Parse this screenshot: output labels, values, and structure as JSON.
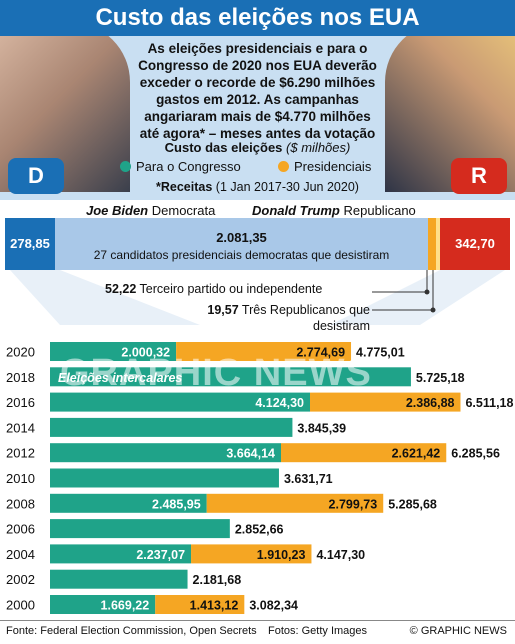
{
  "title": "Custo das eleições nos EUA",
  "intro": "As eleições presidenciais e para o Congresso de 2020 nos EUA deverão exceder o recorde de $6.290 milhões gastos em 2012. As campanhas angariaram mais de $4.770 milhões até agora* – meses antes da votação",
  "costs_title": "Custo das eleições",
  "costs_unit": "($ milhões)",
  "legend": {
    "congress": "Para o Congresso",
    "presidential": "Presidenciais"
  },
  "receipts_label": "*Receitas",
  "receipts_period": "(1 Jan 2017-30 Jun 2020)",
  "candidates": {
    "biden_name": "Joe Biden",
    "biden_party": "Democrata",
    "trump_name": "Donald Trump",
    "trump_party": "Republicano"
  },
  "contributions": {
    "biden": "278,85",
    "trump": "342,70",
    "dems_value": "2.081,35",
    "dems_label": "27  candidatos presidenciais democratas que desistiram",
    "third_value": "52,22",
    "third_label": "Terceiro partido ou independente",
    "rep_value": "19,57",
    "rep_label": "Três Republicanos que desistiram"
  },
  "party_logos": {
    "dem": "D",
    "rep": "R"
  },
  "colors": {
    "congress": "#1fa389",
    "presidential": "#f5a623",
    "dem": "#1a6fb5",
    "rep": "#d52b1e",
    "dem_light": "#a9c8e8",
    "header_bg": "#c9dff2"
  },
  "watermark": "GRAPHIC NEWS",
  "chart_data": {
    "type": "bar",
    "orientation": "horizontal",
    "stacked": true,
    "categories": [
      "2020",
      "2018",
      "2016",
      "2014",
      "2012",
      "2010",
      "2008",
      "2006",
      "2004",
      "2002",
      "2000"
    ],
    "series": [
      {
        "name": "Para o Congresso",
        "values": [
          2000.32,
          5725.18,
          4124.3,
          3845.39,
          3664.14,
          3631.71,
          2485.95,
          2852.66,
          2237.07,
          2181.68,
          1669.22
        ],
        "labels": [
          "2.000,32",
          "",
          "4.124,30",
          "",
          "3.664,14",
          "",
          "2.485,95",
          "",
          "2.237,07",
          "",
          "1.669,22"
        ]
      },
      {
        "name": "Presidenciais",
        "values": [
          2774.69,
          0,
          2386.88,
          0,
          2621.42,
          0,
          2799.73,
          0,
          1910.23,
          0,
          1413.12
        ],
        "labels": [
          "2.774,69",
          "",
          "2.386,88",
          "",
          "2.621,42",
          "",
          "2.799,73",
          "",
          "1.910,23",
          "",
          "1.413,12"
        ]
      }
    ],
    "totals": [
      "4.775,01",
      "5.725,18",
      "6.511,18",
      "3.845,39",
      "6.285,56",
      "3.631,71",
      "5.285,68",
      "2.852,66",
      "4.147,30",
      "2.181,68",
      "3.082,34"
    ],
    "annotations": [
      {
        "category": "2018",
        "text": "Eleições intercalares"
      }
    ],
    "xlim": [
      0,
      8000
    ]
  },
  "footer": {
    "source": "Fonte: Federal Election Commission, Open Secrets",
    "photos": "Fotos: Getty Images",
    "credit": "© GRAPHIC NEWS"
  }
}
